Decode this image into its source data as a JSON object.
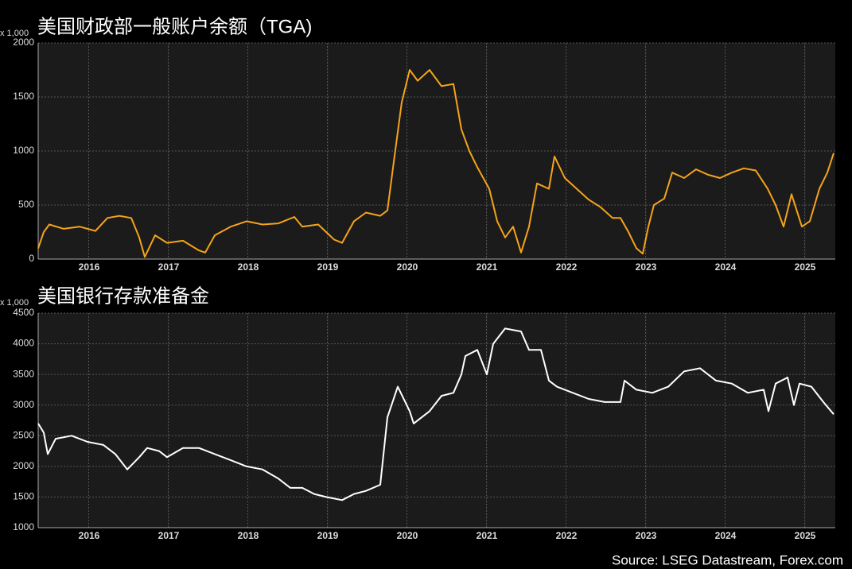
{
  "chart_data": [
    {
      "type": "line",
      "title": "美国财政部一般账户余额（TGA)",
      "y_unit": "x 1,000",
      "xlim": [
        2015.86,
        2025.88
      ],
      "ylim": [
        0,
        2000
      ],
      "yticks": [
        0,
        500,
        1000,
        1500,
        2000
      ],
      "grid": true,
      "xticks": [
        {
          "value": 2016.5,
          "label": "2016"
        },
        {
          "value": 2017.5,
          "label": "2017"
        },
        {
          "value": 2018.5,
          "label": "2018"
        },
        {
          "value": 2019.5,
          "label": "2019"
        },
        {
          "value": 2020.5,
          "label": "2020"
        },
        {
          "value": 2021.5,
          "label": "2021"
        },
        {
          "value": 2022.5,
          "label": "2022"
        },
        {
          "value": 2023.5,
          "label": "2023"
        },
        {
          "value": 2024.5,
          "label": "2024"
        },
        {
          "value": 2025.5,
          "label": "2025"
        }
      ],
      "series": [
        {
          "name": "TGA",
          "color": "#f5a31a",
          "x": [
            2015.86,
            2015.93,
            2016.0,
            2016.18,
            2016.38,
            2016.58,
            2016.73,
            2016.88,
            2017.03,
            2017.13,
            2017.2,
            2017.33,
            2017.48,
            2017.68,
            2017.88,
            2017.96,
            2018.08,
            2018.28,
            2018.48,
            2018.68,
            2018.88,
            2019.08,
            2019.18,
            2019.38,
            2019.58,
            2019.68,
            2019.83,
            2019.98,
            2020.16,
            2020.25,
            2020.33,
            2020.43,
            2020.53,
            2020.63,
            2020.78,
            2020.93,
            2021.08,
            2021.18,
            2021.28,
            2021.38,
            2021.53,
            2021.63,
            2021.73,
            2021.83,
            2021.93,
            2022.03,
            2022.13,
            2022.28,
            2022.35,
            2022.48,
            2022.63,
            2022.78,
            2022.93,
            2023.08,
            2023.18,
            2023.28,
            2023.38,
            2023.46,
            2023.53,
            2023.6,
            2023.73,
            2023.83,
            2023.98,
            2024.13,
            2024.28,
            2024.43,
            2024.58,
            2024.73,
            2024.88,
            2025.03,
            2025.13,
            2025.23,
            2025.33,
            2025.46,
            2025.56,
            2025.68,
            2025.78,
            2025.86
          ],
          "values": [
            100,
            250,
            320,
            280,
            300,
            260,
            380,
            400,
            380,
            200,
            20,
            220,
            150,
            170,
            80,
            60,
            220,
            300,
            350,
            320,
            330,
            390,
            300,
            320,
            180,
            150,
            350,
            430,
            400,
            450,
            900,
            1450,
            1750,
            1650,
            1750,
            1600,
            1620,
            1200,
            1000,
            850,
            650,
            350,
            200,
            300,
            60,
            300,
            700,
            650,
            950,
            750,
            650,
            550,
            480,
            380,
            380,
            250,
            100,
            50,
            300,
            500,
            560,
            800,
            750,
            830,
            780,
            750,
            800,
            840,
            820,
            650,
            500,
            300,
            600,
            300,
            350,
            650,
            800,
            980
          ]
        }
      ]
    },
    {
      "type": "line",
      "title": "美国银行存款准备金",
      "y_unit": "x 1,000",
      "xlim": [
        2015.86,
        2025.88
      ],
      "ylim": [
        1000,
        4500
      ],
      "yticks": [
        1000,
        1500,
        2000,
        2500,
        3000,
        3500,
        4000,
        4500
      ],
      "grid": true,
      "xticks": [
        {
          "value": 2016.5,
          "label": "2016"
        },
        {
          "value": 2017.5,
          "label": "2017"
        },
        {
          "value": 2018.5,
          "label": "2018"
        },
        {
          "value": 2019.5,
          "label": "2019"
        },
        {
          "value": 2020.5,
          "label": "2020"
        },
        {
          "value": 2021.5,
          "label": "2021"
        },
        {
          "value": 2022.5,
          "label": "2022"
        },
        {
          "value": 2023.5,
          "label": "2023"
        },
        {
          "value": 2024.5,
          "label": "2024"
        },
        {
          "value": 2025.5,
          "label": "2025"
        }
      ],
      "series": [
        {
          "name": "Reserves",
          "color": "#ffffff",
          "x": [
            2015.86,
            2015.93,
            2015.98,
            2016.08,
            2016.28,
            2016.48,
            2016.68,
            2016.83,
            2016.98,
            2017.13,
            2017.23,
            2017.38,
            2017.48,
            2017.68,
            2017.88,
            2018.08,
            2018.28,
            2018.48,
            2018.68,
            2018.88,
            2019.03,
            2019.18,
            2019.33,
            2019.48,
            2019.68,
            2019.83,
            2019.98,
            2020.16,
            2020.25,
            2020.38,
            2020.53,
            2020.58,
            2020.78,
            2020.93,
            2021.08,
            2021.18,
            2021.23,
            2021.38,
            2021.5,
            2021.58,
            2021.73,
            2021.93,
            2022.03,
            2022.18,
            2022.28,
            2022.38,
            2022.58,
            2022.78,
            2022.98,
            2023.18,
            2023.23,
            2023.38,
            2023.58,
            2023.78,
            2023.98,
            2024.18,
            2024.38,
            2024.58,
            2024.78,
            2024.98,
            2025.04,
            2025.13,
            2025.28,
            2025.36,
            2025.43,
            2025.58,
            2025.73,
            2025.86
          ],
          "values": [
            2700,
            2550,
            2200,
            2450,
            2500,
            2400,
            2350,
            2200,
            1950,
            2150,
            2300,
            2250,
            2150,
            2300,
            2300,
            2200,
            2100,
            2000,
            1950,
            1800,
            1650,
            1650,
            1550,
            1500,
            1450,
            1550,
            1600,
            1700,
            2800,
            3300,
            2900,
            2700,
            2900,
            3150,
            3200,
            3500,
            3800,
            3900,
            3500,
            4000,
            4250,
            4200,
            3900,
            3900,
            3400,
            3300,
            3200,
            3100,
            3050,
            3050,
            3400,
            3250,
            3200,
            3300,
            3550,
            3600,
            3400,
            3350,
            3200,
            3250,
            2900,
            3350,
            3450,
            3000,
            3350,
            3300,
            3050,
            2850
          ]
        }
      ]
    }
  ],
  "source": "Source: LSEG Datastream, Forex.com"
}
